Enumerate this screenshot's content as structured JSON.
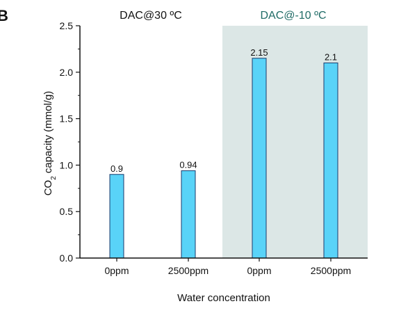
{
  "panel_label": "B",
  "colors": {
    "bar_fill": "#59d3f8",
    "bar_stroke": "#1a3a6b",
    "shade": "#dce7e6",
    "axis": "#111111",
    "group2_title": "#1f6b66",
    "text": "#111111"
  },
  "chart_data": {
    "type": "bar",
    "groups": [
      {
        "title": "DAC@30 ºC",
        "categories": [
          "0ppm",
          "2500ppm"
        ],
        "values": [
          0.9,
          0.94
        ],
        "labels": [
          "0.9",
          "0.94"
        ],
        "shaded": false
      },
      {
        "title": "DAC@-10 ºC",
        "categories": [
          "0ppm",
          "2500ppm"
        ],
        "values": [
          2.15,
          2.1
        ],
        "labels": [
          "2.15",
          "2.1"
        ],
        "shaded": true
      }
    ],
    "categories": [
      "0ppm",
      "2500ppm",
      "0ppm",
      "2500ppm"
    ],
    "values": [
      0.9,
      0.94,
      2.15,
      2.1
    ],
    "xlabel": "Water concentration",
    "ylabel": {
      "pre": "CO",
      "sub": "2",
      "post": " capacity (mmol/g)"
    },
    "ylim": [
      0.0,
      2.5
    ],
    "yticks": [
      0.0,
      0.5,
      1.0,
      1.5,
      2.0,
      2.5
    ],
    "ytick_labels": [
      "0.0",
      "0.5",
      "1.0",
      "1.5",
      "2.0",
      "2.5"
    ]
  }
}
